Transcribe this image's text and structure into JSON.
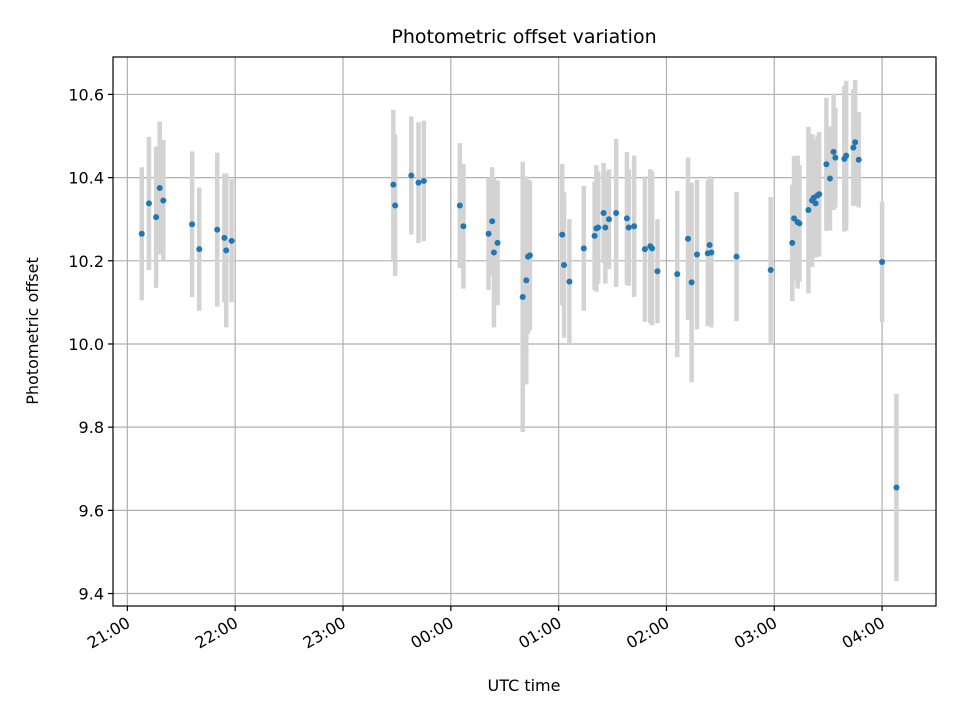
{
  "chart_data": {
    "type": "scatter",
    "title": "Photometric offset variation",
    "xlabel": "UTC time",
    "ylabel": "Photometric offset",
    "x_ticks": [
      "21:00",
      "22:00",
      "23:00",
      "00:00",
      "01:00",
      "02:00",
      "03:00",
      "04:00"
    ],
    "y_ticks": [
      "9.4",
      "9.6",
      "9.8",
      "10.0",
      "10.2",
      "10.4",
      "10.6"
    ],
    "xlim": [
      "20:52",
      "04:30"
    ],
    "ylim": [
      9.37,
      10.69
    ],
    "grid": true,
    "colors": {
      "point": "#1f77b4",
      "errorbar": "#d3d3d3"
    },
    "series": [
      {
        "x": [
          "21:08",
          "21:12",
          "21:16",
          "21:18",
          "21:20",
          "21:36",
          "21:40",
          "21:50",
          "21:54",
          "21:55",
          "21:58",
          "23:28",
          "23:29",
          "23:38",
          "23:42",
          "23:45",
          "00:05",
          "00:07",
          "00:21",
          "00:23",
          "00:24",
          "00:26",
          "00:40",
          "00:42",
          "00:43",
          "00:44",
          "01:02",
          "01:03",
          "01:06",
          "01:14",
          "01:20",
          "01:21",
          "01:22",
          "01:25",
          "01:26",
          "01:28",
          "01:32",
          "01:38",
          "01:39",
          "01:42",
          "01:48",
          "01:51",
          "01:52",
          "01:55",
          "02:06",
          "02:12",
          "02:14",
          "02:17",
          "02:23",
          "02:24",
          "02:25",
          "02:39",
          "02:58",
          "03:10",
          "03:11",
          "03:13",
          "03:14",
          "03:19",
          "03:21",
          "03:22",
          "03:23",
          "03:24",
          "03:25",
          "03:29",
          "03:31",
          "03:33",
          "03:34",
          "03:39",
          "03:40",
          "03:44",
          "03:45",
          "03:47",
          "04:00",
          "04:08"
        ],
        "y": [
          10.265,
          10.338,
          10.305,
          10.375,
          10.345,
          10.288,
          10.228,
          10.275,
          10.255,
          10.225,
          10.248,
          10.383,
          10.333,
          10.405,
          10.388,
          10.392,
          10.333,
          10.283,
          10.265,
          10.295,
          10.22,
          10.243,
          10.113,
          10.153,
          10.21,
          10.213,
          10.263,
          10.19,
          10.15,
          10.23,
          10.26,
          10.278,
          10.28,
          10.315,
          10.28,
          10.3,
          10.315,
          10.302,
          10.28,
          10.283,
          10.228,
          10.235,
          10.23,
          10.175,
          10.168,
          10.253,
          10.148,
          10.215,
          10.218,
          10.238,
          10.22,
          10.21,
          10.178,
          10.243,
          10.302,
          10.293,
          10.29,
          10.322,
          10.345,
          10.352,
          10.338,
          10.357,
          10.36,
          10.432,
          10.398,
          10.462,
          10.448,
          10.445,
          10.453,
          10.472,
          10.485,
          10.443,
          10.197,
          9.655
        ],
        "err": [
          0.16,
          0.16,
          0.17,
          0.16,
          0.145,
          0.175,
          0.148,
          0.185,
          0.155,
          0.185,
          0.148,
          0.18,
          0.17,
          0.142,
          0.145,
          0.145,
          0.15,
          0.15,
          0.135,
          0.13,
          0.18,
          0.15,
          0.325,
          0.25,
          0.185,
          0.18,
          0.17,
          0.175,
          0.15,
          0.15,
          0.13,
          0.152,
          0.135,
          0.12,
          0.135,
          0.12,
          0.178,
          0.16,
          0.14,
          0.17,
          0.175,
          0.185,
          0.185,
          0.125,
          0.2,
          0.195,
          0.24,
          0.18,
          0.175,
          0.165,
          0.18,
          0.155,
          0.175,
          0.14,
          0.15,
          0.16,
          0.14,
          0.2,
          0.16,
          0.14,
          0.13,
          0.145,
          0.15,
          0.16,
          0.125,
          0.14,
          0.12,
          0.175,
          0.18,
          0.14,
          0.15,
          0.115,
          0.145,
          0.225
        ]
      }
    ]
  }
}
